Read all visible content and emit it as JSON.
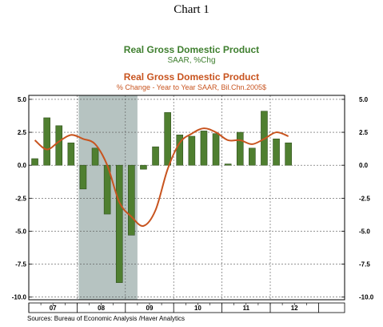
{
  "header": {
    "chart_number": "Chart 1"
  },
  "chart_data": {
    "type": "bar",
    "series": [
      {
        "name": "Real Gross Domestic Product",
        "subtitle": "SAAR, %Chg",
        "type": "bar",
        "color": "#4f7f30",
        "values": [
          0.5,
          3.6,
          3.0,
          1.7,
          -1.8,
          1.3,
          -3.7,
          -8.9,
          -5.3,
          -0.3,
          1.4,
          4.0,
          2.3,
          2.2,
          2.6,
          2.4,
          0.1,
          2.5,
          1.3,
          4.1,
          2.0,
          1.7
        ]
      },
      {
        "name": "Real Gross Domestic Product",
        "subtitle": "% Change - Year to Year    SAAR, Bil.Chn.2005$",
        "type": "line",
        "color": "#c8541f",
        "values": [
          1.9,
          1.2,
          1.8,
          2.3,
          2.0,
          1.6,
          0.0,
          -2.8,
          -3.9,
          -4.6,
          -3.4,
          -0.3,
          1.7,
          2.4,
          2.8,
          2.5,
          1.9,
          1.9,
          1.6,
          2.0,
          2.5,
          2.2
        ]
      }
    ],
    "x_labels": [
      "07",
      "08",
      "09",
      "10",
      "11",
      "12"
    ],
    "y_ticks": [
      "5.0",
      "2.5",
      "0.0",
      "-2.5",
      "-5.0",
      "-7.5",
      "-10.0"
    ],
    "ylim": [
      -10.2,
      5.3
    ],
    "recession": {
      "from_quarter": 4,
      "to_quarter": 9
    },
    "grid": "dashed",
    "source": "Sources:  Bureau of Economic Analysis /Haver Analytics"
  }
}
